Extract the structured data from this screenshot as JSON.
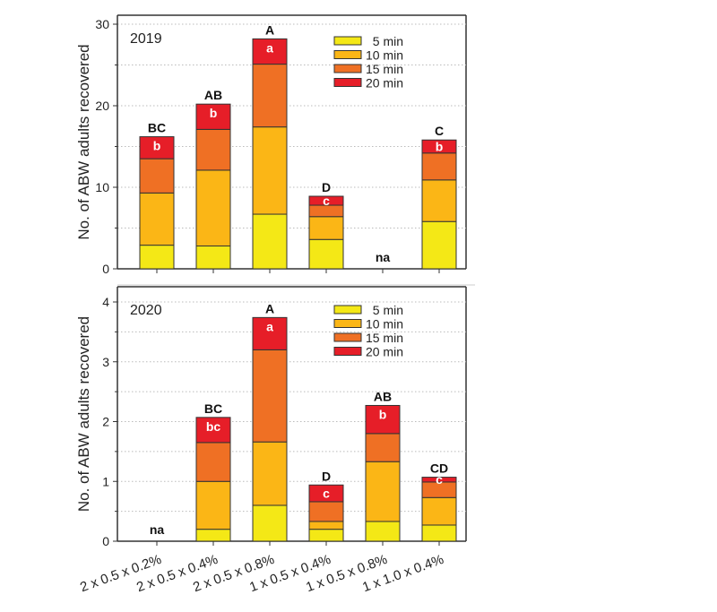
{
  "chart_data": [
    {
      "type": "bar",
      "stacked": true,
      "title": "2019",
      "ylabel": "No. of ABW adults recovered",
      "ylim": [
        0,
        30
      ],
      "yticks": [
        0,
        10,
        20,
        30
      ],
      "grid": true,
      "legend_position": "top-right",
      "categories": [
        "2 x 0.5 x 0.2%",
        "2 x 0.5 x 0.4%",
        "2 x 0.5 x 0.8%",
        "1 x 0.5 x 0.4%",
        "1 x 0.5 x 0.8%",
        "1 x 1.0 x 0.4%"
      ],
      "series": [
        {
          "name": "5 min",
          "color": "#f4e816",
          "values": [
            2.9,
            2.8,
            6.7,
            3.6,
            null,
            5.8
          ]
        },
        {
          "name": "10 min",
          "color": "#fbb616",
          "values": [
            6.4,
            9.3,
            10.7,
            2.8,
            null,
            5.1
          ]
        },
        {
          "name": "15 min",
          "color": "#ef7024",
          "values": [
            4.2,
            5.0,
            7.7,
            1.4,
            null,
            3.3
          ]
        },
        {
          "name": "20 min",
          "color": "#e61e28",
          "values": [
            2.7,
            3.1,
            3.1,
            1.1,
            null,
            1.6
          ]
        }
      ],
      "total_labels": [
        "BC",
        "AB",
        "A",
        "D",
        "na",
        "C"
      ],
      "segment_labels": [
        "b",
        "b",
        "a",
        "c",
        "",
        "b"
      ]
    },
    {
      "type": "bar",
      "stacked": true,
      "title": "2020",
      "ylabel": "No. of ABW adults recovered",
      "ylim": [
        0,
        4
      ],
      "yticks": [
        0,
        1,
        2,
        3,
        4
      ],
      "grid": true,
      "legend_position": "top-right",
      "categories": [
        "2 x 0.5 x 0.2%",
        "2 x 0.5 x 0.4%",
        "2 x 0.5 x 0.8%",
        "1 x 0.5 x 0.4%",
        "1 x 0.5 x 0.8%",
        "1 x 1.0 x 0.4%"
      ],
      "series": [
        {
          "name": "5 min",
          "color": "#f4e816",
          "values": [
            null,
            0.2,
            0.6,
            0.2,
            0.33,
            0.27
          ]
        },
        {
          "name": "10 min",
          "color": "#fbb616",
          "values": [
            null,
            0.8,
            1.06,
            0.13,
            1.0,
            0.46
          ]
        },
        {
          "name": "15 min",
          "color": "#ef7024",
          "values": [
            null,
            0.65,
            1.54,
            0.33,
            0.47,
            0.26
          ]
        },
        {
          "name": "20 min",
          "color": "#e61e28",
          "values": [
            null,
            0.42,
            0.54,
            0.28,
            0.47,
            0.08
          ]
        }
      ],
      "total_labels": [
        "na",
        "BC",
        "A",
        "D",
        "AB",
        "CD"
      ],
      "segment_labels": [
        "",
        "bc",
        "a",
        "c",
        "b",
        "c"
      ]
    }
  ]
}
